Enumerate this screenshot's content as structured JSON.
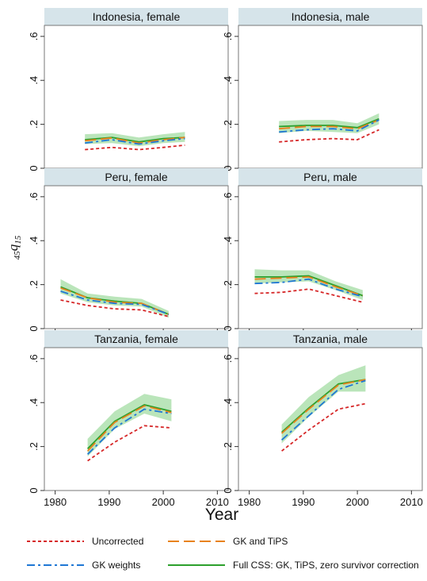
{
  "chart_data": {
    "type": "line",
    "ylabel": "45q15",
    "ylabel_main": "q",
    "ylabel_pre": "45",
    "ylabel_sub": "15",
    "xlabel": "Year",
    "xlim": [
      1978,
      2012
    ],
    "ylim": [
      0,
      0.65
    ],
    "xticks": [
      1980,
      1990,
      2000,
      2010
    ],
    "yticks": [
      0,
      0.2,
      0.4,
      0.6
    ],
    "ytick_labels": [
      "0",
      ".2",
      ".4",
      ".6"
    ],
    "colors": {
      "uncorrected": "#d62728",
      "gk_weights": "#1f77d4",
      "gk_tips": "#e8821e",
      "full_css": "#2ca02c",
      "band": "#a3dca3",
      "strip": "#d6e4ea"
    },
    "legend": [
      {
        "key": "uncorrected",
        "label": "Uncorrected",
        "dash": "4,3"
      },
      {
        "key": "gk_tips",
        "label": "GK and TiPS",
        "dash": "14,6"
      },
      {
        "key": "gk_weights",
        "label": "GK weights",
        "dash": "10,4,3,4"
      },
      {
        "key": "full_css",
        "label": "Full CSS: GK, TiPS, zero survivor correction",
        "dash": ""
      }
    ],
    "panels": [
      {
        "title": "Indonesia, female",
        "x": [
          1985.5,
          1990.5,
          1995.5,
          2000,
          2004
        ],
        "uncorrected": [
          0.085,
          0.095,
          0.085,
          0.095,
          0.105
        ],
        "gk_weights": [
          0.115,
          0.13,
          0.11,
          0.125,
          0.135
        ],
        "gk_tips": [
          0.125,
          0.138,
          0.115,
          0.13,
          0.14
        ],
        "full_css": [
          0.13,
          0.14,
          0.12,
          0.135,
          0.14
        ],
        "band_low": [
          0.11,
          0.115,
          0.1,
          0.115,
          0.12
        ],
        "band_high": [
          0.155,
          0.16,
          0.14,
          0.155,
          0.165
        ]
      },
      {
        "title": "Indonesia, male",
        "x": [
          1985.5,
          1990.5,
          1995.5,
          2000,
          2004
        ],
        "uncorrected": [
          0.12,
          0.13,
          0.135,
          0.13,
          0.175
        ],
        "gk_weights": [
          0.165,
          0.175,
          0.18,
          0.17,
          0.22
        ],
        "gk_tips": [
          0.18,
          0.19,
          0.19,
          0.18,
          0.22
        ],
        "full_css": [
          0.19,
          0.195,
          0.195,
          0.185,
          0.225
        ],
        "band_low": [
          0.16,
          0.17,
          0.165,
          0.16,
          0.2
        ],
        "band_high": [
          0.215,
          0.22,
          0.22,
          0.205,
          0.25
        ]
      },
      {
        "title": "Peru, female",
        "x": [
          1981,
          1986,
          1991,
          1996,
          2001
        ],
        "uncorrected": [
          0.13,
          0.105,
          0.09,
          0.085,
          0.055
        ],
        "gk_weights": [
          0.17,
          0.13,
          0.115,
          0.11,
          0.065
        ],
        "gk_tips": [
          0.185,
          0.14,
          0.12,
          0.115,
          0.065
        ],
        "full_css": [
          0.19,
          0.14,
          0.125,
          0.115,
          0.065
        ],
        "band_low": [
          0.16,
          0.12,
          0.105,
          0.1,
          0.05
        ],
        "band_high": [
          0.225,
          0.16,
          0.145,
          0.135,
          0.08
        ]
      },
      {
        "title": "Peru, male",
        "x": [
          1981,
          1986,
          1991,
          1996,
          2001
        ],
        "uncorrected": [
          0.16,
          0.165,
          0.18,
          0.15,
          0.12
        ],
        "gk_weights": [
          0.205,
          0.21,
          0.225,
          0.18,
          0.145
        ],
        "gk_tips": [
          0.225,
          0.23,
          0.235,
          0.19,
          0.15
        ],
        "full_css": [
          0.235,
          0.235,
          0.24,
          0.195,
          0.15
        ],
        "band_low": [
          0.205,
          0.21,
          0.215,
          0.175,
          0.13
        ],
        "band_high": [
          0.27,
          0.265,
          0.265,
          0.215,
          0.175
        ]
      },
      {
        "title": "Tanzania, female",
        "x": [
          1986,
          1991,
          1996.5,
          2001.5
        ],
        "uncorrected": [
          0.135,
          0.22,
          0.295,
          0.285
        ],
        "gk_weights": [
          0.165,
          0.285,
          0.37,
          0.35
        ],
        "gk_tips": [
          0.18,
          0.31,
          0.385,
          0.355
        ],
        "full_css": [
          0.19,
          0.315,
          0.39,
          0.36
        ],
        "band_low": [
          0.155,
          0.28,
          0.35,
          0.315
        ],
        "band_high": [
          0.235,
          0.36,
          0.44,
          0.415
        ]
      },
      {
        "title": "Tanzania, male",
        "x": [
          1986,
          1991,
          1996.5,
          2001.5
        ],
        "uncorrected": [
          0.18,
          0.275,
          0.37,
          0.395
        ],
        "gk_weights": [
          0.23,
          0.34,
          0.46,
          0.5
        ],
        "gk_tips": [
          0.26,
          0.37,
          0.48,
          0.505
        ],
        "full_css": [
          0.265,
          0.375,
          0.485,
          0.505
        ],
        "band_low": [
          0.215,
          0.335,
          0.45,
          0.45
        ],
        "band_high": [
          0.3,
          0.425,
          0.525,
          0.57
        ]
      }
    ]
  }
}
